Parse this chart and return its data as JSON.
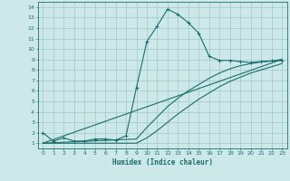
{
  "xlabel": "Humidex (Indice chaleur)",
  "bg_color": "#cce8e8",
  "grid_color": "#aacccc",
  "line_color": "#1a6e6e",
  "xlim": [
    -0.5,
    23.5
  ],
  "ylim": [
    0.5,
    14.5
  ],
  "xticks": [
    0,
    1,
    2,
    3,
    4,
    5,
    6,
    7,
    8,
    9,
    10,
    11,
    12,
    13,
    14,
    15,
    16,
    17,
    18,
    19,
    20,
    21,
    22,
    23
  ],
  "yticks": [
    1,
    2,
    3,
    4,
    5,
    6,
    7,
    8,
    9,
    10,
    11,
    12,
    13,
    14
  ],
  "line1_x": [
    0,
    1,
    2,
    3,
    4,
    5,
    6,
    7,
    8,
    9,
    10,
    11,
    12,
    13,
    14,
    15,
    16,
    17,
    18,
    19,
    20,
    21,
    22,
    23
  ],
  "line1_y": [
    2.0,
    1.2,
    1.5,
    1.2,
    1.2,
    1.4,
    1.4,
    1.3,
    1.7,
    6.3,
    10.7,
    12.2,
    13.8,
    13.3,
    12.5,
    11.5,
    9.3,
    8.9,
    8.9,
    8.8,
    8.7,
    8.8,
    8.85,
    8.9
  ],
  "line2_x": [
    0,
    9,
    10,
    11,
    12,
    13,
    14,
    15,
    16,
    17,
    18,
    19,
    20,
    21,
    22,
    23
  ],
  "line2_y": [
    1.0,
    1.0,
    1.5,
    2.2,
    3.0,
    3.8,
    4.5,
    5.2,
    5.8,
    6.4,
    6.9,
    7.3,
    7.7,
    8.0,
    8.3,
    8.6
  ],
  "line3_x": [
    0,
    9,
    10,
    11,
    12,
    13,
    14,
    15,
    16,
    17,
    18,
    19,
    20,
    21,
    22,
    23
  ],
  "line3_y": [
    1.0,
    1.4,
    2.5,
    3.5,
    4.5,
    5.3,
    6.0,
    6.6,
    7.2,
    7.7,
    8.1,
    8.4,
    8.6,
    8.75,
    8.85,
    9.0
  ],
  "line4_x": [
    0,
    23
  ],
  "line4_y": [
    1.0,
    9.0
  ]
}
